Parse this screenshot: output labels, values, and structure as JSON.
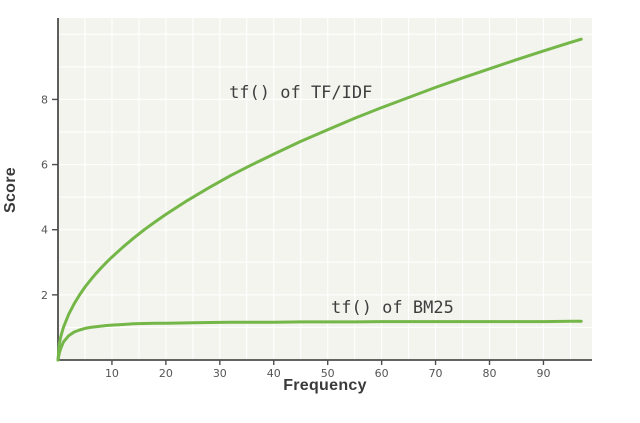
{
  "chart_data": {
    "type": "line",
    "title": "",
    "xlabel": "Frequency",
    "ylabel": "Score",
    "xlim": [
      0,
      99
    ],
    "ylim": [
      0,
      10.5
    ],
    "x_ticks": [
      10,
      20,
      30,
      40,
      50,
      60,
      70,
      80,
      90
    ],
    "y_ticks": [
      2,
      4,
      6,
      8
    ],
    "grid": {
      "on": true,
      "x_step": 5,
      "y_step": 1
    },
    "legend": "none (inline annotations)",
    "colors": {
      "line": "#74b748",
      "plot_bg": "#f4f4ef",
      "grid": "#ffffff",
      "axis": "#4d4d4d",
      "tick_text": "#555555"
    },
    "series": [
      {
        "name": "tf() of TF/IDF",
        "x": [
          0,
          0.25,
          0.5,
          1,
          2,
          3,
          4,
          5,
          6,
          7,
          8,
          9,
          10,
          12,
          14,
          16,
          18,
          20,
          24,
          28,
          32,
          36,
          40,
          45,
          50,
          55,
          60,
          65,
          70,
          75,
          80,
          85,
          90,
          95,
          97
        ],
        "y": [
          0,
          0.5,
          0.71,
          1,
          1.41,
          1.73,
          2,
          2.24,
          2.45,
          2.65,
          2.83,
          3,
          3.16,
          3.46,
          3.74,
          4,
          4.24,
          4.47,
          4.9,
          5.29,
          5.66,
          6,
          6.32,
          6.71,
          7.07,
          7.42,
          7.75,
          8.06,
          8.37,
          8.66,
          8.94,
          9.22,
          9.49,
          9.75,
          9.85
        ]
      },
      {
        "name": "tf() of BM25",
        "x": [
          0,
          0.25,
          0.5,
          1,
          2,
          3,
          4,
          5,
          6,
          7,
          8,
          9,
          10,
          12,
          14,
          16,
          18,
          20,
          24,
          28,
          32,
          36,
          40,
          45,
          50,
          55,
          60,
          65,
          70,
          75,
          80,
          85,
          90,
          95,
          97
        ],
        "y": [
          0,
          0.21,
          0.35,
          0.55,
          0.75,
          0.86,
          0.92,
          0.97,
          1.0,
          1.02,
          1.04,
          1.06,
          1.07,
          1.09,
          1.11,
          1.12,
          1.13,
          1.13,
          1.14,
          1.15,
          1.16,
          1.16,
          1.16,
          1.17,
          1.17,
          1.17,
          1.18,
          1.18,
          1.18,
          1.18,
          1.18,
          1.18,
          1.18,
          1.19,
          1.19
        ]
      }
    ],
    "annotations": [
      {
        "text": "tf() of TF/IDF",
        "x": 45,
        "y": 8.2
      },
      {
        "text": "tf() of BM25",
        "x": 62,
        "y": 1.6
      }
    ]
  }
}
